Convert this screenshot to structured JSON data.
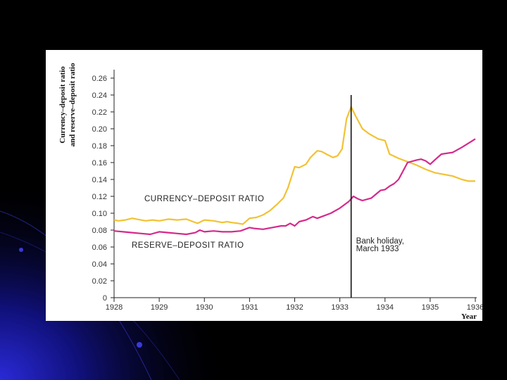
{
  "slide": {
    "background_color": "#000000",
    "accent_color": "#1a1aa8"
  },
  "chart_data": {
    "type": "line",
    "ylabel_line1": "Currency–deposit ratio",
    "ylabel_line2": "and reserve–deposit ratio",
    "xlabel": "Year",
    "x_ticks": [
      "1928",
      "1929",
      "1930",
      "1931",
      "1932",
      "1933",
      "1934",
      "1935",
      "1936"
    ],
    "y_ticks": [
      "0",
      "0.02",
      "0.04",
      "0.06",
      "0.08",
      "0.10",
      "0.12",
      "0.14",
      "0.16",
      "0.18",
      "0.20",
      "0.22",
      "0.24",
      "0.26"
    ],
    "xlim": [
      1928,
      1936
    ],
    "ylim": [
      0,
      0.27
    ],
    "grid": false,
    "series": [
      {
        "name": "CURRENCY–DEPOSIT RATIO",
        "color": "#f2c233",
        "x": [
          1928.0,
          1928.1,
          1928.25,
          1928.4,
          1928.5,
          1928.7,
          1928.85,
          1929.0,
          1929.2,
          1929.4,
          1929.6,
          1929.75,
          1929.85,
          1930.0,
          1930.2,
          1930.4,
          1930.5,
          1930.6,
          1930.75,
          1930.85,
          1931.0,
          1931.15,
          1931.3,
          1931.45,
          1931.6,
          1931.75,
          1931.85,
          1932.0,
          1932.1,
          1932.25,
          1932.35,
          1932.5,
          1932.6,
          1932.7,
          1932.85,
          1932.95,
          1933.05,
          1933.15,
          1933.25,
          1933.35,
          1933.5,
          1933.65,
          1933.85,
          1934.0,
          1934.1,
          1934.3,
          1934.5,
          1934.7,
          1934.9,
          1935.1,
          1935.3,
          1935.5,
          1935.7,
          1935.85,
          1936.0
        ],
        "y": [
          0.092,
          0.091,
          0.092,
          0.094,
          0.093,
          0.091,
          0.092,
          0.091,
          0.093,
          0.092,
          0.093,
          0.09,
          0.088,
          0.092,
          0.091,
          0.089,
          0.09,
          0.089,
          0.088,
          0.087,
          0.094,
          0.095,
          0.098,
          0.103,
          0.11,
          0.118,
          0.13,
          0.155,
          0.154,
          0.158,
          0.166,
          0.174,
          0.173,
          0.17,
          0.166,
          0.168,
          0.176,
          0.212,
          0.226,
          0.215,
          0.2,
          0.194,
          0.188,
          0.186,
          0.17,
          0.165,
          0.161,
          0.157,
          0.152,
          0.148,
          0.146,
          0.144,
          0.14,
          0.138,
          0.138
        ]
      },
      {
        "name": "RESERVE–DEPOSIT RATIO",
        "color": "#d42a8c",
        "x": [
          1928.0,
          1928.2,
          1928.4,
          1928.6,
          1928.8,
          1929.0,
          1929.2,
          1929.4,
          1929.6,
          1929.8,
          1929.9,
          1930.0,
          1930.2,
          1930.4,
          1930.6,
          1930.8,
          1931.0,
          1931.1,
          1931.3,
          1931.5,
          1931.7,
          1931.8,
          1931.9,
          1932.0,
          1932.1,
          1932.25,
          1932.4,
          1932.5,
          1932.6,
          1932.8,
          1933.0,
          1933.1,
          1933.2,
          1933.3,
          1933.4,
          1933.5,
          1933.7,
          1933.9,
          1934.0,
          1934.1,
          1934.2,
          1934.3,
          1934.5,
          1934.7,
          1934.8,
          1934.9,
          1935.0,
          1935.1,
          1935.25,
          1935.5,
          1935.7,
          1935.85,
          1936.0
        ],
        "y": [
          0.079,
          0.078,
          0.077,
          0.076,
          0.075,
          0.078,
          0.077,
          0.076,
          0.075,
          0.077,
          0.08,
          0.078,
          0.079,
          0.078,
          0.078,
          0.079,
          0.083,
          0.082,
          0.081,
          0.083,
          0.085,
          0.085,
          0.088,
          0.085,
          0.09,
          0.092,
          0.096,
          0.094,
          0.096,
          0.1,
          0.106,
          0.11,
          0.114,
          0.12,
          0.117,
          0.115,
          0.118,
          0.127,
          0.128,
          0.132,
          0.135,
          0.14,
          0.16,
          0.163,
          0.164,
          0.162,
          0.158,
          0.163,
          0.17,
          0.172,
          0.178,
          0.183,
          0.188
        ]
      }
    ],
    "annotations": [
      {
        "text_line1": "Bank holiday,",
        "text_line2": "March 1933",
        "x": 1933.25
      }
    ]
  }
}
